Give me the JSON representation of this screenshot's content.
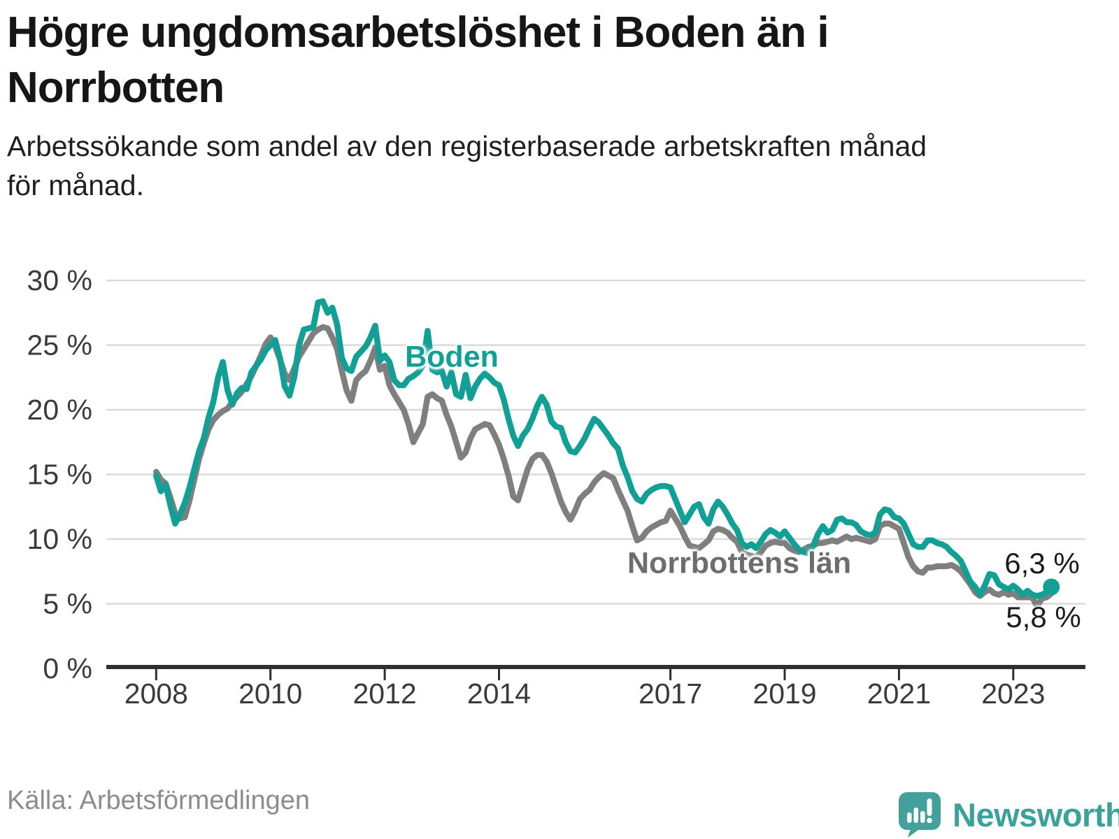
{
  "header": {
    "title_lines": [
      "Högre ungdomsarbetslöshet i Boden än i",
      "Norrbotten"
    ],
    "subtitle_lines": [
      "Arbetssökande som andel av den registerbaserade arbetskraften månad",
      "för månad."
    ]
  },
  "footer": {
    "source": "Källa: Arbetsförmedlingen",
    "brand": "Newsworthy"
  },
  "colors": {
    "boden_line": "#12a096",
    "norrbotten_line": "#7f7f7f",
    "norrbotten_label": "#6d6d6d",
    "gridline": "#dadada",
    "axis": "#2f2f2f",
    "axis_text": "#3a3a3a",
    "end_label_text": "#1c1c1c",
    "brand_teal": "#44a09a"
  },
  "annotations": {
    "boden_label": "Boden",
    "norrbotten_label": "Norrbottens län",
    "end_label_boden": "6,3 %",
    "end_label_norrbotten": "5,8 %"
  },
  "chart_data": {
    "type": "line",
    "frequency": "monthly",
    "start_year": 2008,
    "start_month": 1,
    "end_year": 2023,
    "end_month": 9,
    "ylim": [
      0,
      31
    ],
    "grid": true,
    "legend_position": "inline-labels",
    "y_ticks": [
      0,
      5,
      10,
      15,
      20,
      25,
      30
    ],
    "y_tick_labels": [
      "0 %",
      "5 %",
      "10 %",
      "15 %",
      "20 %",
      "25 %",
      "30 %"
    ],
    "x_tick_years": [
      2008,
      2010,
      2012,
      2014,
      2017,
      2019,
      2021,
      2023
    ],
    "x_tick_labels": [
      "2008",
      "2010",
      "2012",
      "2014",
      "2017",
      "2019",
      "2021",
      "2023"
    ],
    "series": [
      {
        "name": "Norrbottens län",
        "color": "#7f7f7f",
        "end_value_label": "5,8 %",
        "end_dot": false,
        "values": [
          15.2,
          14.6,
          14.3,
          13.2,
          12.0,
          11.6,
          11.7,
          13.0,
          14.6,
          16.2,
          17.4,
          18.5,
          19.2,
          19.6,
          19.9,
          20.1,
          20.6,
          21.0,
          21.4,
          22.0,
          22.6,
          23.4,
          24.2,
          25.1,
          25.6,
          24.9,
          23.9,
          22.8,
          22.3,
          23.2,
          24.1,
          24.7,
          25.3,
          25.9,
          26.2,
          26.4,
          26.3,
          25.6,
          24.7,
          23.0,
          21.5,
          20.7,
          22.3,
          22.7,
          23.0,
          23.8,
          24.8,
          23.1,
          23.4,
          21.9,
          21.2,
          20.6,
          20.0,
          18.9,
          17.5,
          18.2,
          18.9,
          21.0,
          21.2,
          20.9,
          20.7,
          19.6,
          18.7,
          17.5,
          16.3,
          16.7,
          17.8,
          18.5,
          18.7,
          18.9,
          18.8,
          18.1,
          17.3,
          16.2,
          14.9,
          13.3,
          13.0,
          14.2,
          15.4,
          16.2,
          16.5,
          16.5,
          16.0,
          15.1,
          14.0,
          12.9,
          12.1,
          11.5,
          12.2,
          13.1,
          13.5,
          13.8,
          14.4,
          14.8,
          15.1,
          14.9,
          14.7,
          13.8,
          13.0,
          12.2,
          11.0,
          9.9,
          10.1,
          10.6,
          10.9,
          11.1,
          11.3,
          11.4,
          12.2,
          11.6,
          11.0,
          10.2,
          9.5,
          9.4,
          9.3,
          9.6,
          9.9,
          10.6,
          10.8,
          10.7,
          10.5,
          10.1,
          9.8,
          9.0,
          8.8,
          8.7,
          8.6,
          9.0,
          9.5,
          9.7,
          9.8,
          9.7,
          9.7,
          9.3,
          9.1,
          9.0,
          9.2,
          9.4,
          9.5,
          9.7,
          9.7,
          9.8,
          9.9,
          9.8,
          10.0,
          10.2,
          10.0,
          10.1,
          10.0,
          9.9,
          9.8,
          10.0,
          11.0,
          11.2,
          11.2,
          11.0,
          10.8,
          9.7,
          8.6,
          7.9,
          7.5,
          7.4,
          7.8,
          7.8,
          7.9,
          7.9,
          7.9,
          8.0,
          7.8,
          7.5,
          7.0,
          6.5,
          5.9,
          5.6,
          5.9,
          6.1,
          5.8,
          5.7,
          5.9,
          5.7,
          5.8,
          5.5,
          5.5,
          5.5,
          5.5,
          4.8,
          5.4,
          5.5,
          5.8
        ]
      },
      {
        "name": "Boden",
        "color": "#12a096",
        "end_value_label": "6,3 %",
        "end_dot": true,
        "values": [
          14.9,
          13.7,
          14.2,
          12.6,
          11.2,
          11.9,
          12.8,
          14.0,
          15.4,
          16.8,
          17.8,
          19.4,
          20.6,
          22.5,
          23.7,
          21.5,
          20.4,
          21.3,
          21.7,
          21.6,
          22.9,
          23.4,
          23.9,
          24.6,
          25.0,
          25.4,
          24.0,
          21.8,
          21.1,
          22.5,
          25.0,
          26.2,
          26.3,
          26.4,
          28.3,
          28.4,
          27.5,
          27.9,
          26.6,
          24.0,
          23.2,
          23.0,
          24.1,
          24.5,
          24.9,
          25.6,
          26.5,
          23.8,
          24.2,
          23.7,
          22.3,
          21.9,
          21.9,
          22.4,
          22.6,
          22.9,
          23.4,
          26.1,
          23.1,
          22.9,
          23.0,
          21.8,
          22.9,
          21.2,
          21.0,
          22.7,
          20.9,
          21.8,
          22.4,
          22.8,
          22.5,
          22.1,
          21.9,
          20.8,
          19.3,
          18.0,
          17.2,
          18.0,
          18.5,
          19.3,
          20.3,
          21.0,
          20.4,
          19.1,
          18.7,
          18.6,
          17.5,
          16.8,
          16.7,
          17.2,
          17.8,
          18.6,
          19.3,
          19.0,
          18.5,
          18.0,
          17.4,
          17.0,
          15.7,
          14.8,
          13.7,
          13.1,
          12.9,
          13.5,
          13.8,
          14.0,
          14.1,
          14.1,
          14.0,
          13.1,
          12.2,
          11.3,
          11.9,
          12.5,
          12.7,
          11.7,
          11.2,
          12.3,
          12.9,
          12.5,
          11.9,
          11.2,
          10.7,
          9.7,
          9.4,
          9.6,
          9.3,
          9.8,
          10.4,
          10.7,
          10.5,
          10.2,
          10.6,
          10.1,
          9.6,
          9.2,
          9.0,
          8.9,
          9.5,
          10.4,
          11.0,
          10.5,
          10.7,
          11.5,
          11.6,
          11.3,
          11.3,
          11.1,
          10.6,
          10.4,
          10.3,
          10.5,
          11.9,
          12.3,
          12.2,
          11.7,
          11.6,
          11.2,
          10.4,
          9.6,
          9.4,
          9.4,
          9.9,
          9.9,
          9.7,
          9.6,
          9.4,
          9.0,
          8.7,
          8.3,
          7.5,
          6.7,
          6.3,
          5.7,
          6.4,
          7.3,
          7.2,
          6.5,
          6.3,
          6.1,
          6.4,
          6.1,
          5.7,
          6.0,
          5.7,
          5.6,
          5.7,
          5.9,
          6.3
        ]
      }
    ]
  }
}
